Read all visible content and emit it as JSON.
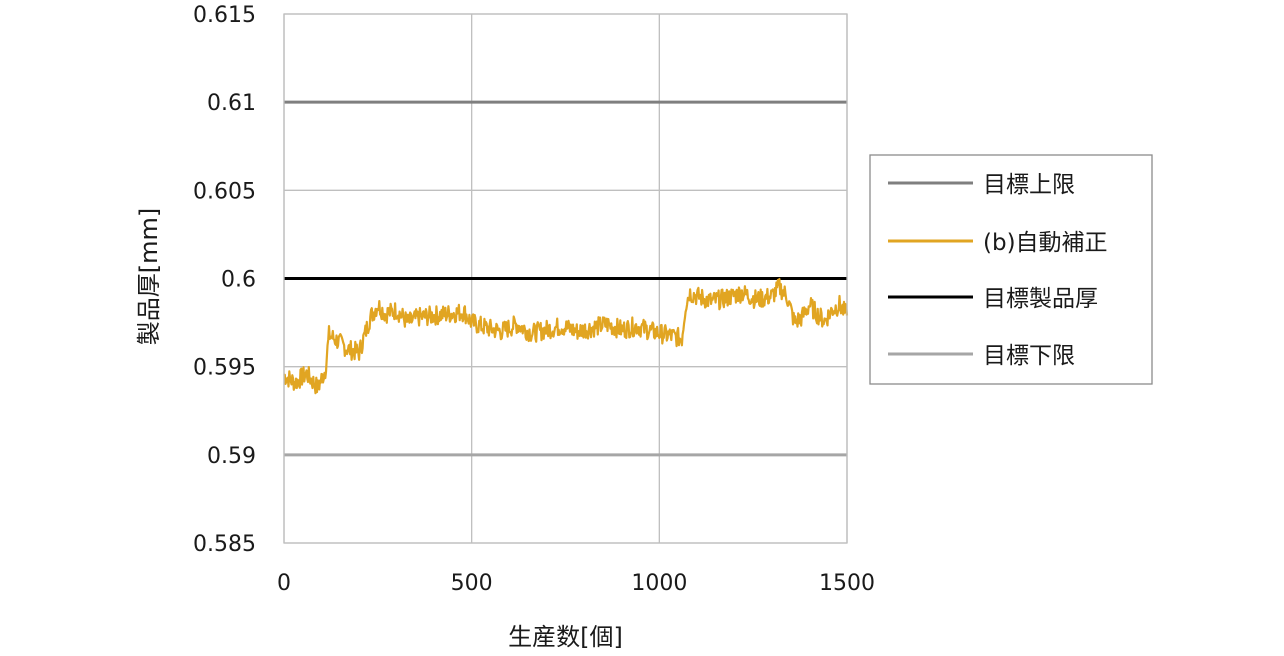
{
  "chart_data": {
    "type": "line",
    "xlabel": "生産数[個]",
    "ylabel": "製品厚[mm]",
    "xlim": [
      0,
      1500
    ],
    "ylim": [
      0.585,
      0.615
    ],
    "x_ticks": [
      "0",
      "500",
      "1000",
      "1500"
    ],
    "y_ticks": [
      "0.615",
      "0.61",
      "0.605",
      "0.6",
      "0.595",
      "0.59",
      "0.585"
    ],
    "grid": true,
    "legend_position": "right",
    "series": [
      {
        "name": "目標上限",
        "color": "#7f7f7f",
        "kind": "constant",
        "value": 0.61
      },
      {
        "name": "(b)自動補正",
        "color": "#e1a522",
        "kind": "line",
        "x": [
          0,
          30,
          60,
          90,
          110,
          120,
          140,
          170,
          200,
          215,
          230,
          250,
          270,
          300,
          330,
          360,
          400,
          440,
          480,
          500,
          540,
          580,
          620,
          660,
          700,
          740,
          780,
          820,
          860,
          900,
          940,
          980,
          1020,
          1060,
          1070,
          1080,
          1100,
          1140,
          1180,
          1220,
          1260,
          1300,
          1320,
          1340,
          1360,
          1380,
          1400,
          1420,
          1440,
          1460,
          1480,
          1500
        ],
        "y": [
          0.5945,
          0.5941,
          0.5946,
          0.5938,
          0.5948,
          0.5968,
          0.5965,
          0.596,
          0.5958,
          0.5968,
          0.5978,
          0.5985,
          0.598,
          0.5982,
          0.5975,
          0.5978,
          0.5979,
          0.598,
          0.5981,
          0.5975,
          0.5972,
          0.597,
          0.5974,
          0.5969,
          0.5971,
          0.5973,
          0.597,
          0.5972,
          0.5974,
          0.5971,
          0.5973,
          0.597,
          0.5968,
          0.5966,
          0.5985,
          0.5992,
          0.599,
          0.5987,
          0.5989,
          0.5992,
          0.5988,
          0.599,
          0.5995,
          0.599,
          0.5975,
          0.5978,
          0.5985,
          0.598,
          0.5976,
          0.5982,
          0.5985,
          0.5979
        ]
      },
      {
        "name": "目標製品厚",
        "color": "#000000",
        "kind": "constant",
        "value": 0.6
      },
      {
        "name": "目標下限",
        "color": "#a6a6a6",
        "kind": "constant",
        "value": 0.59
      }
    ]
  }
}
